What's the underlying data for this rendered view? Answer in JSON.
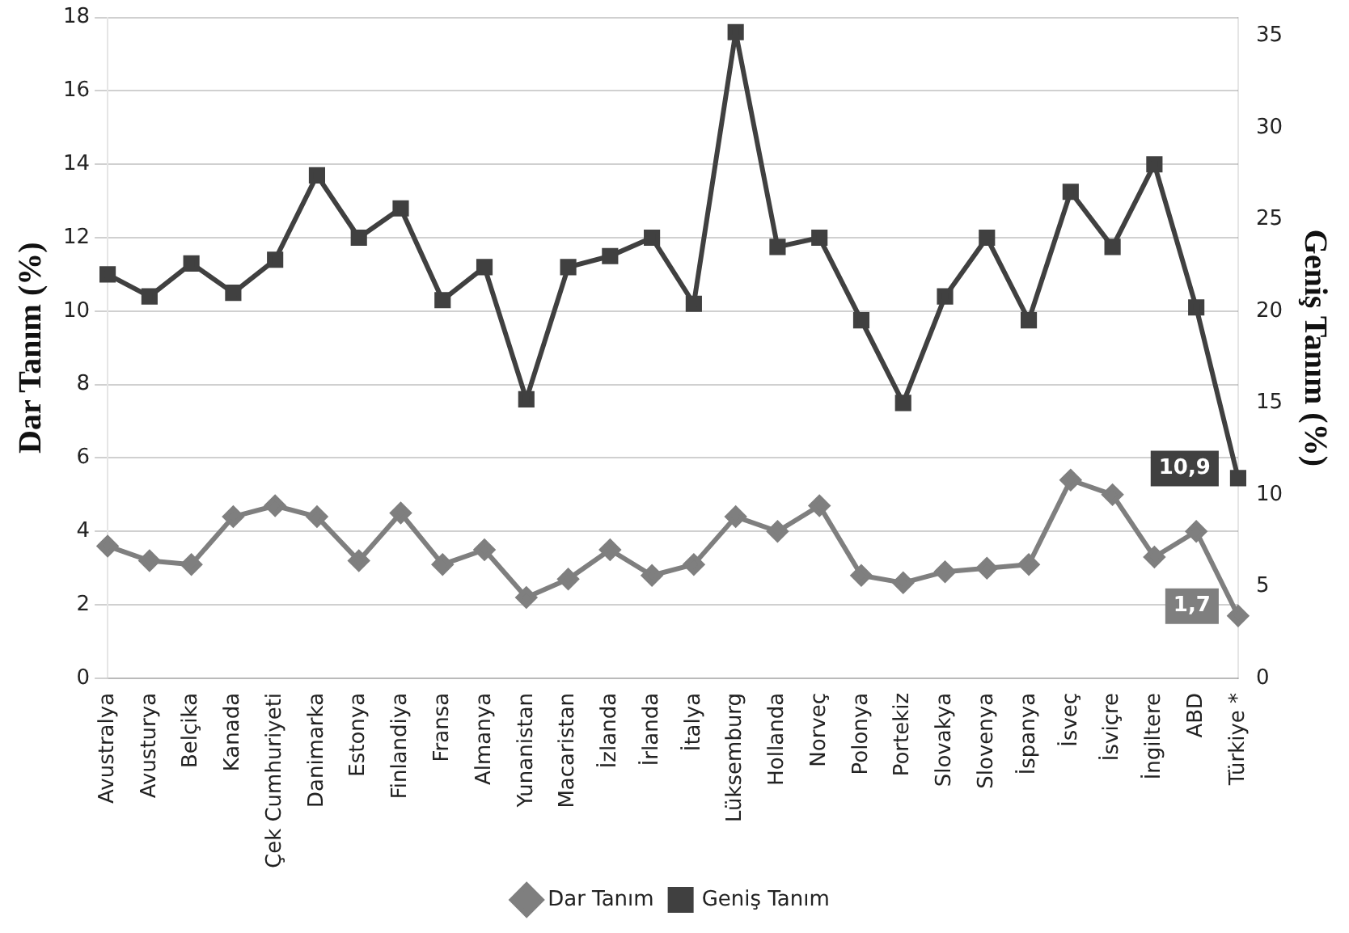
{
  "chart_data": {
    "type": "line",
    "ylabel": "Dar Tanım (%)",
    "y2label": "Geniş Tanım (%)",
    "categories": [
      "Avustralya",
      "Avusturya",
      "Belçika",
      "Kanada",
      "Çek Cumhuriyeti",
      "Danimarka",
      "Estonya",
      "Finlandiya",
      "Fransa",
      "Almanya",
      "Yunanistan",
      "Macaristan",
      "İzlanda",
      "İrlanda",
      "İtalya",
      "Lüksemburg",
      "Hollanda",
      "Norveç",
      "Polonya",
      "Portekiz",
      "Slovakya",
      "Slovenya",
      "İspanya",
      "İsveç",
      "İsviçre",
      "İngiltere",
      "ABD",
      "Türkiye *"
    ],
    "series": [
      {
        "name": "Dar Tanım",
        "color": "#7f7f7f",
        "marker": "diamond",
        "values": [
          3.6,
          3.2,
          3.1,
          4.4,
          4.7,
          4.4,
          3.2,
          4.5,
          3.1,
          3.5,
          2.2,
          2.7,
          3.5,
          2.8,
          3.1,
          4.4,
          4.0,
          4.7,
          2.8,
          2.6,
          2.9,
          3.0,
          3.1,
          5.4,
          5.0,
          3.3,
          4.0,
          1.7
        ],
        "value_labels": [
          null,
          null,
          null,
          null,
          null,
          null,
          null,
          null,
          null,
          null,
          null,
          null,
          null,
          null,
          null,
          null,
          null,
          null,
          null,
          null,
          null,
          null,
          null,
          null,
          null,
          null,
          null,
          "1,7"
        ]
      },
      {
        "name": "Geniş Tanım",
        "color": "#404040",
        "marker": "square",
        "axis": "y2",
        "values": [
          22,
          20.8,
          22.6,
          21,
          22.8,
          27.4,
          24,
          25.6,
          20.6,
          22.4,
          15.2,
          22.4,
          23,
          24,
          20.4,
          35.2,
          23.5,
          24,
          19.5,
          15,
          20.8,
          24,
          19.5,
          26.5,
          23.5,
          28,
          20.2,
          10.9
        ],
        "value_labels": [
          null,
          null,
          null,
          null,
          null,
          null,
          null,
          null,
          null,
          null,
          null,
          null,
          null,
          null,
          null,
          null,
          null,
          null,
          null,
          null,
          null,
          null,
          null,
          null,
          null,
          null,
          null,
          "10,9"
        ]
      }
    ],
    "ylim": [
      0,
      18
    ],
    "yticks": [
      0,
      2,
      4,
      6,
      8,
      10,
      12,
      14,
      16,
      18
    ],
    "y2lim": [
      0,
      36
    ],
    "y2ticks": [
      0,
      5,
      10,
      15,
      20,
      25,
      30,
      35
    ],
    "grid": "y",
    "legend": "bottom",
    "line_style": "solid"
  }
}
